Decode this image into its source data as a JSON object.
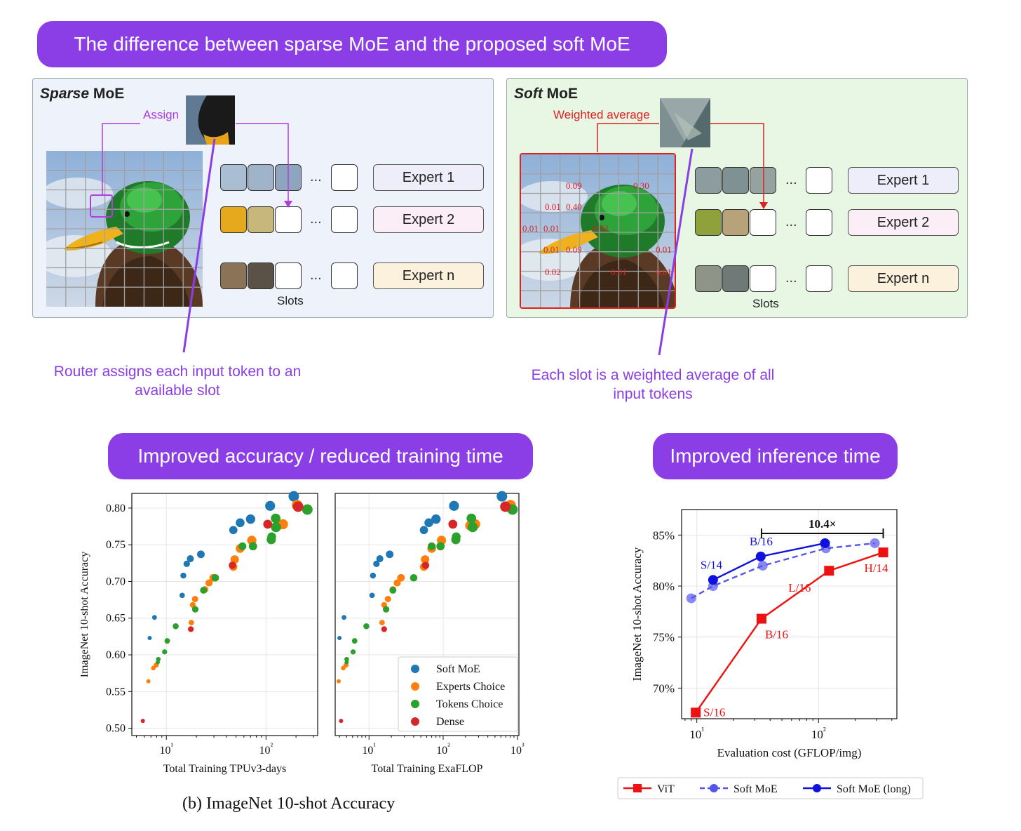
{
  "banners": {
    "top": "The difference between sparse MoE and the proposed soft MoE",
    "accuracy": "Improved accuracy / reduced training time",
    "inference": "Improved inference time"
  },
  "sparse": {
    "title_italic": "Sparse",
    "title_rest": " MoE",
    "assign_label": "Assign",
    "experts": [
      "Expert 1",
      "Expert 2",
      "Expert n"
    ],
    "slots_label": "Slots",
    "ellipsis": "...",
    "caption": "Router assigns each input token to an available slot",
    "colors": {
      "bg": "#eef3fb",
      "expert1": "#eeeefa",
      "expert2": "#fbeef6",
      "expertn": "#fcf1dc"
    }
  },
  "soft": {
    "title_italic": "Soft",
    "title_rest": " MoE",
    "weighted_label": "Weighted average",
    "experts": [
      "Expert 1",
      "Expert 2",
      "Expert n"
    ],
    "slots_label": "Slots",
    "ellipsis": "...",
    "caption": "Each slot is a weighted average of all input tokens",
    "weights": [
      "0.09",
      "0.30",
      "0.01",
      "0.40",
      "0.01",
      "0.01",
      "0.03",
      "0.01",
      "0.09",
      "0.01",
      "0.02",
      "0.01",
      "0.01"
    ],
    "colors": {
      "bg": "#e8f6e4",
      "accent": "#dd2222"
    }
  },
  "chart_data": [
    {
      "type": "scatter",
      "xlabel": "Total Training TPUv3-days",
      "ylabel": "ImageNet 10-shot Accuracy",
      "xscale": "log",
      "xlim": [
        4.5,
        330
      ],
      "ylim": [
        0.49,
        0.82
      ],
      "yticks": [
        "0.50",
        "0.55",
        "0.60",
        "0.65",
        "0.70",
        "0.75",
        "0.80"
      ],
      "xticks": [
        "10¹",
        "10²"
      ],
      "grid": true,
      "series": [
        {
          "name": "Soft MoE",
          "color": "#1f77b4",
          "points": [
            [
              6.8,
              0.623
            ],
            [
              7.6,
              0.651
            ],
            [
              14.4,
              0.681
            ],
            [
              14.8,
              0.708
            ],
            [
              16.0,
              0.724
            ],
            [
              17.4,
              0.731
            ],
            [
              22.2,
              0.737
            ],
            [
              47,
              0.77
            ],
            [
              55,
              0.78
            ],
            [
              70,
              0.785
            ],
            [
              110,
              0.803
            ],
            [
              190,
              0.816
            ]
          ]
        },
        {
          "name": "Experts Choice",
          "color": "#ff7f0e",
          "points": [
            [
              6.6,
              0.564
            ],
            [
              7.4,
              0.582
            ],
            [
              7.9,
              0.586
            ],
            [
              17.8,
              0.644
            ],
            [
              18.4,
              0.668
            ],
            [
              19.4,
              0.676
            ],
            [
              24.4,
              0.689
            ],
            [
              26.8,
              0.698
            ],
            [
              29.5,
              0.705
            ],
            [
              47,
              0.72
            ],
            [
              48.5,
              0.73
            ],
            [
              55,
              0.745
            ],
            [
              72,
              0.756
            ],
            [
              130,
              0.776
            ],
            [
              148,
              0.778
            ],
            [
              205,
              0.804
            ]
          ]
        },
        {
          "name": "Tokens Choice",
          "color": "#2ca02c",
          "points": [
            [
              8.2,
              0.59
            ],
            [
              8.3,
              0.594
            ],
            [
              9.6,
              0.604
            ],
            [
              10.2,
              0.619
            ],
            [
              12.4,
              0.639
            ],
            [
              19.5,
              0.662
            ],
            [
              23.6,
              0.688
            ],
            [
              31,
              0.705
            ],
            [
              58,
              0.748
            ],
            [
              74,
              0.748
            ],
            [
              114,
              0.761
            ],
            [
              113,
              0.757
            ],
            [
              125,
              0.786
            ],
            [
              126,
              0.774
            ],
            [
              260,
              0.798
            ]
          ]
        },
        {
          "name": "Dense",
          "color": "#d62728",
          "points": [
            [
              5.8,
              0.51
            ],
            [
              17.6,
              0.635
            ],
            [
              46,
              0.722
            ],
            [
              104,
              0.778
            ],
            [
              210,
              0.802
            ]
          ]
        }
      ]
    },
    {
      "type": "scatter",
      "xlabel": "Total Training ExaFLOP",
      "xscale": "log",
      "xlim": [
        3.5,
        1050
      ],
      "ylim": [
        0.49,
        0.82
      ],
      "xticks": [
        "10¹",
        "10²",
        "10³"
      ],
      "grid": true,
      "series": [
        {
          "name": "Soft MoE",
          "color": "#1f77b4",
          "points": [
            [
              4.0,
              0.623
            ],
            [
              4.6,
              0.651
            ],
            [
              11,
              0.681
            ],
            [
              11.3,
              0.708
            ],
            [
              12.6,
              0.724
            ],
            [
              14,
              0.731
            ],
            [
              19,
              0.737
            ],
            [
              55,
              0.77
            ],
            [
              64,
              0.78
            ],
            [
              80,
              0.785
            ],
            [
              140,
              0.803
            ],
            [
              620,
              0.816
            ]
          ]
        },
        {
          "name": "Experts Choice",
          "color": "#ff7f0e",
          "points": [
            [
              3.9,
              0.564
            ],
            [
              4.5,
              0.582
            ],
            [
              4.9,
              0.586
            ],
            [
              15,
              0.644
            ],
            [
              16,
              0.668
            ],
            [
              18,
              0.676
            ],
            [
              21,
              0.689
            ],
            [
              24,
              0.698
            ],
            [
              27,
              0.705
            ],
            [
              55,
              0.72
            ],
            [
              57,
              0.73
            ],
            [
              70,
              0.745
            ],
            [
              95,
              0.756
            ],
            [
              230,
              0.776
            ],
            [
              270,
              0.778
            ],
            [
              810,
              0.804
            ]
          ]
        },
        {
          "name": "Tokens Choice",
          "color": "#2ca02c",
          "points": [
            [
              5.0,
              0.59
            ],
            [
              5.0,
              0.594
            ],
            [
              6.1,
              0.604
            ],
            [
              6.4,
              0.619
            ],
            [
              9.2,
              0.639
            ],
            [
              17,
              0.662
            ],
            [
              21,
              0.688
            ],
            [
              40,
              0.705
            ],
            [
              70,
              0.748
            ],
            [
              92,
              0.748
            ],
            [
              150,
              0.761
            ],
            [
              148,
              0.757
            ],
            [
              240,
              0.786
            ],
            [
              250,
              0.774
            ],
            [
              860,
              0.798
            ]
          ]
        },
        {
          "name": "Dense",
          "color": "#d62728",
          "points": [
            [
              4.2,
              0.51
            ],
            [
              16,
              0.635
            ],
            [
              58,
              0.722
            ],
            [
              135,
              0.778
            ],
            [
              690,
              0.802
            ]
          ]
        }
      ]
    },
    {
      "type": "line",
      "xlabel": "Evaluation cost (GFLOP/img)",
      "ylabel": "ImageNet 10-shot Accuracy",
      "xscale": "log",
      "xlim": [
        7.5,
        440
      ],
      "ylim": [
        67.0,
        87.5
      ],
      "yticks": [
        "70%",
        "75%",
        "80%",
        "85%"
      ],
      "xticks": [
        "10¹",
        "10²"
      ],
      "grid": true,
      "annotation": "10.4×",
      "series": [
        {
          "name": "ViT",
          "color": "#ee1111",
          "style": "solid",
          "marker": "square",
          "points": [
            [
              9.8,
              67.6
            ],
            [
              34,
              76.8
            ],
            [
              122,
              81.5
            ],
            [
              340,
              83.3
            ]
          ],
          "labels": [
            "S/16",
            "B/16",
            "L/16",
            "H/14"
          ]
        },
        {
          "name": "Soft MoE",
          "color": "#5555ee",
          "style": "dashed",
          "marker": "circle",
          "points": [
            [
              9.0,
              78.8
            ],
            [
              13.6,
              80.0
            ],
            [
              34.8,
              82.0
            ],
            [
              115,
              83.7
            ],
            [
              290,
              84.2
            ]
          ]
        },
        {
          "name": "Soft MoE (long)",
          "color": "#1111dd",
          "style": "solid",
          "marker": "circle",
          "points": [
            [
              13.6,
              80.6
            ],
            [
              33.5,
              82.9
            ],
            [
              113,
              84.2
            ]
          ],
          "labels": [
            "S/14",
            "B/16"
          ]
        }
      ]
    }
  ],
  "figure_caption": "(b) ImageNet 10-shot Accuracy"
}
